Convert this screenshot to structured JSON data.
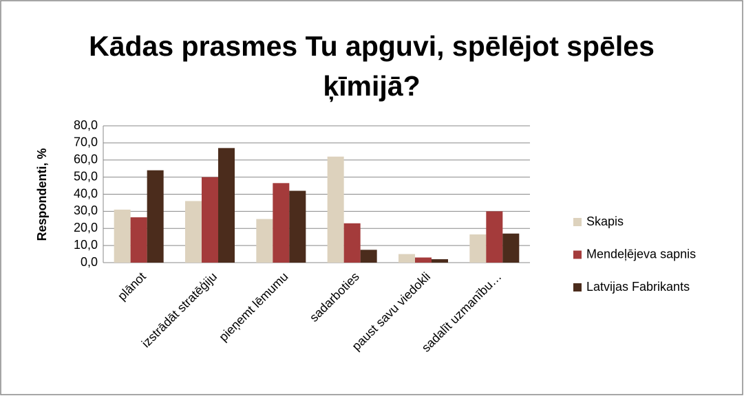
{
  "chart_data": {
    "type": "bar",
    "title": "Kādas prasmes Tu apguvi, spēlējot spēles ķīmijā?",
    "ylabel": "Respondenti, %",
    "categories": [
      "plānot",
      "izstrādāt stratēģiju",
      "pieņemt lēmumu",
      "sadarboties",
      "paust savu viedokli",
      "sadalīt uzmanību…"
    ],
    "series": [
      {
        "name": "Skapis",
        "color": "#ddd2bd",
        "values": [
          31,
          36,
          25.5,
          62,
          5,
          16.5
        ]
      },
      {
        "name": "Mendeļējeva sapnis",
        "color": "#a43b3b",
        "values": [
          26.5,
          50,
          46.5,
          23,
          3,
          30
        ]
      },
      {
        "name": "Latvijas Fabrikants",
        "color": "#4b2c1c",
        "values": [
          54,
          67,
          42,
          7.5,
          2,
          17
        ]
      }
    ],
    "ylim": [
      0,
      80
    ],
    "yticks": [
      {
        "value": 0,
        "label": "0,0"
      },
      {
        "value": 10,
        "label": "10,0"
      },
      {
        "value": 20,
        "label": "20,0"
      },
      {
        "value": 30,
        "label": "30,0"
      },
      {
        "value": 40,
        "label": "40,0"
      },
      {
        "value": 50,
        "label": "50,0"
      },
      {
        "value": 60,
        "label": "60,0"
      },
      {
        "value": 70,
        "label": "70,0"
      },
      {
        "value": 80,
        "label": "80,0"
      }
    ],
    "grid": true,
    "legend": "right"
  }
}
